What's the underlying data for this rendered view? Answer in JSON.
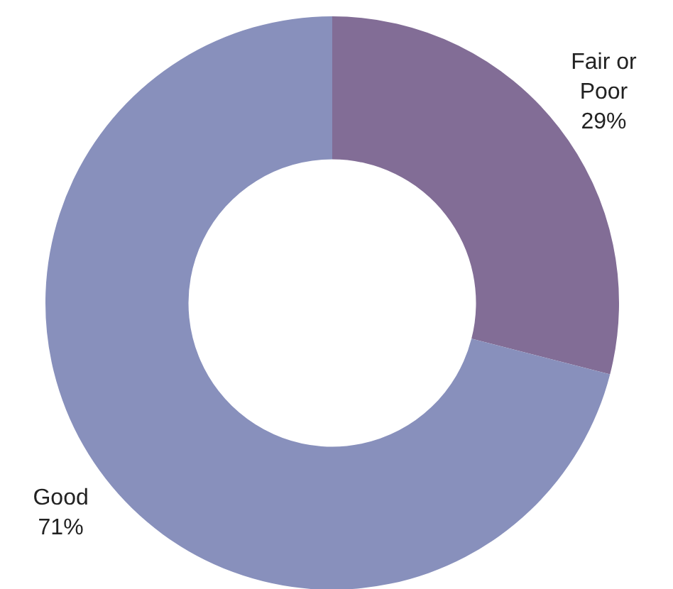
{
  "chart_data": {
    "type": "donut",
    "categories": [
      "Fair or Poor",
      "Good"
    ],
    "values": [
      29,
      71
    ],
    "colors": [
      "#826d96",
      "#8890bc"
    ],
    "value_labels": [
      "29%",
      "71%"
    ],
    "legend": false
  }
}
